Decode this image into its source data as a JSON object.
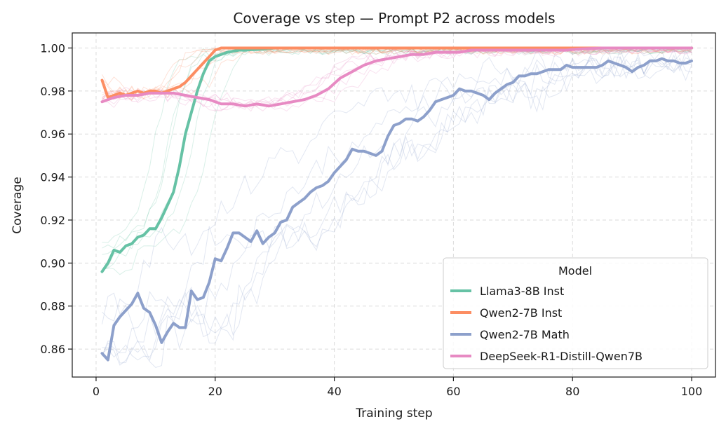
{
  "chart_data": {
    "type": "line",
    "title": "Coverage vs step — Prompt P2 across models",
    "xlabel": "Training step",
    "ylabel": "Coverage",
    "xlim": [
      -4,
      104
    ],
    "ylim": [
      0.847,
      1.007
    ],
    "xticks": [
      0,
      20,
      40,
      60,
      80,
      100
    ],
    "yticks": [
      0.86,
      0.88,
      0.9,
      0.92,
      0.94,
      0.96,
      0.98,
      1.0
    ],
    "xtick_labels": [
      "0",
      "20",
      "40",
      "60",
      "80",
      "100"
    ],
    "ytick_labels": [
      "0.86",
      "0.88",
      "0.90",
      "0.92",
      "0.94",
      "0.96",
      "0.98",
      "1.00"
    ],
    "grid": true,
    "legend": {
      "title": "Model",
      "location": "lower right"
    },
    "series": [
      {
        "name": "Llama3-8B Inst",
        "color": "#66c2a5",
        "x": [
          1,
          2,
          3,
          4,
          5,
          6,
          7,
          8,
          9,
          10,
          11,
          12,
          13,
          14,
          15,
          16,
          17,
          18,
          19,
          20,
          21,
          22,
          23,
          24,
          25,
          26,
          28,
          30,
          35,
          40,
          50,
          60,
          70,
          80,
          90,
          100
        ],
        "y": [
          0.896,
          0.9,
          0.906,
          0.905,
          0.908,
          0.909,
          0.912,
          0.913,
          0.916,
          0.916,
          0.921,
          0.927,
          0.933,
          0.945,
          0.96,
          0.97,
          0.98,
          0.988,
          0.994,
          0.996,
          0.997,
          0.998,
          0.9985,
          0.999,
          0.999,
          0.9992,
          0.9995,
          1.0,
          1.0,
          1.0,
          1.0,
          1.0,
          1.0,
          1.0,
          1.0,
          1.0
        ]
      },
      {
        "name": "Qwen2-7B Inst",
        "color": "#fc8d62",
        "x": [
          1,
          2,
          3,
          4,
          5,
          6,
          7,
          8,
          9,
          10,
          11,
          12,
          13,
          14,
          15,
          16,
          17,
          18,
          19,
          20,
          21,
          22,
          25,
          30,
          40,
          50,
          60,
          70,
          80,
          90,
          100
        ],
        "y": [
          0.985,
          0.977,
          0.978,
          0.979,
          0.978,
          0.979,
          0.98,
          0.979,
          0.98,
          0.98,
          0.979,
          0.98,
          0.981,
          0.982,
          0.984,
          0.987,
          0.99,
          0.993,
          0.996,
          0.999,
          1.0,
          1.0,
          1.0,
          1.0,
          1.0,
          1.0,
          1.0,
          1.0,
          1.0,
          1.0,
          1.0
        ]
      },
      {
        "name": "Qwen2-7B Math",
        "color": "#8da0cb",
        "x": [
          1,
          2,
          3,
          4,
          5,
          6,
          7,
          8,
          9,
          10,
          11,
          12,
          13,
          14,
          15,
          16,
          17,
          18,
          19,
          20,
          21,
          22,
          23,
          24,
          25,
          26,
          27,
          28,
          29,
          30,
          31,
          32,
          33,
          34,
          35,
          36,
          37,
          38,
          39,
          40,
          41,
          42,
          43,
          44,
          45,
          46,
          47,
          48,
          49,
          50,
          51,
          52,
          53,
          54,
          55,
          56,
          57,
          58,
          59,
          60,
          61,
          62,
          63,
          64,
          65,
          66,
          67,
          68,
          69,
          70,
          71,
          72,
          73,
          74,
          75,
          76,
          77,
          78,
          79,
          80,
          81,
          82,
          83,
          84,
          85,
          86,
          87,
          88,
          89,
          90,
          91,
          92,
          93,
          94,
          95,
          96,
          97,
          98,
          99,
          100
        ],
        "y": [
          0.858,
          0.855,
          0.871,
          0.875,
          0.878,
          0.881,
          0.886,
          0.879,
          0.877,
          0.871,
          0.863,
          0.868,
          0.872,
          0.87,
          0.87,
          0.887,
          0.883,
          0.884,
          0.891,
          0.902,
          0.901,
          0.907,
          0.914,
          0.914,
          0.912,
          0.91,
          0.915,
          0.909,
          0.912,
          0.914,
          0.919,
          0.92,
          0.926,
          0.928,
          0.93,
          0.933,
          0.935,
          0.936,
          0.938,
          0.942,
          0.945,
          0.948,
          0.953,
          0.952,
          0.952,
          0.951,
          0.95,
          0.952,
          0.959,
          0.964,
          0.965,
          0.967,
          0.967,
          0.966,
          0.968,
          0.971,
          0.975,
          0.976,
          0.977,
          0.978,
          0.981,
          0.98,
          0.98,
          0.979,
          0.978,
          0.976,
          0.979,
          0.981,
          0.983,
          0.984,
          0.987,
          0.987,
          0.988,
          0.988,
          0.989,
          0.99,
          0.99,
          0.99,
          0.992,
          0.991,
          0.991,
          0.991,
          0.991,
          0.991,
          0.992,
          0.994,
          0.993,
          0.992,
          0.991,
          0.989,
          0.991,
          0.992,
          0.994,
          0.994,
          0.995,
          0.994,
          0.994,
          0.993,
          0.993,
          0.994
        ]
      },
      {
        "name": "DeepSeek-R1-Distill-Qwen7B",
        "color": "#e78ac3",
        "x": [
          1,
          3,
          5,
          7,
          9,
          11,
          13,
          15,
          17,
          19,
          21,
          23,
          25,
          27,
          29,
          31,
          33,
          35,
          37,
          39,
          41,
          43,
          45,
          47,
          49,
          51,
          53,
          55,
          57,
          59,
          61,
          63,
          65,
          67,
          69,
          71,
          73,
          75,
          77,
          79,
          81,
          85,
          90,
          95,
          100
        ],
        "y": [
          0.975,
          0.977,
          0.978,
          0.978,
          0.979,
          0.979,
          0.979,
          0.978,
          0.977,
          0.976,
          0.974,
          0.974,
          0.973,
          0.974,
          0.973,
          0.974,
          0.975,
          0.976,
          0.978,
          0.981,
          0.986,
          0.989,
          0.992,
          0.994,
          0.995,
          0.996,
          0.997,
          0.997,
          0.998,
          0.998,
          0.998,
          0.999,
          0.999,
          0.999,
          0.999,
          0.999,
          0.999,
          0.999,
          0.999,
          0.999,
          0.9995,
          1.0,
          1.0,
          1.0,
          1.0
        ]
      }
    ]
  }
}
